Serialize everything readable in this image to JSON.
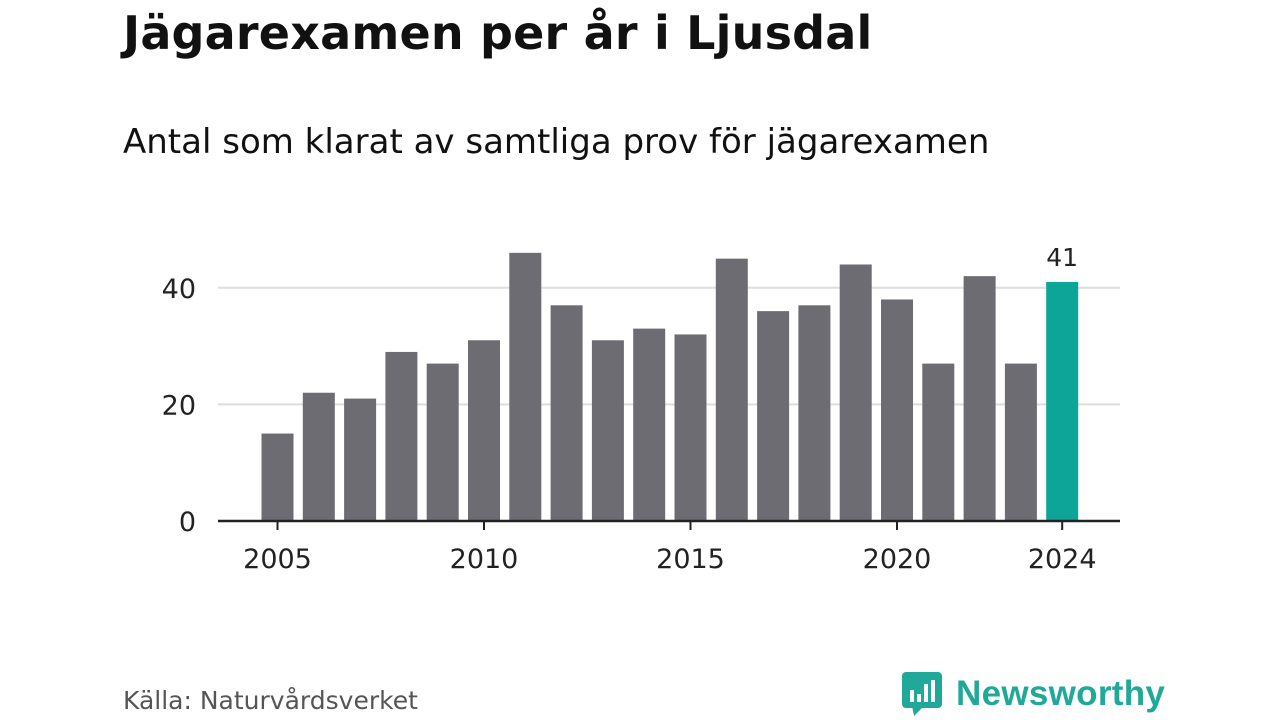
{
  "chart_data": {
    "type": "bar",
    "title": "Jägarexamen per år i Ljusdal",
    "subtitle": "Antal som klarat av samtliga prov för jägarexamen",
    "source": "Källa: Naturvårdsverket",
    "brand": "Newsworthy",
    "categories": [
      "2005",
      "2006",
      "2007",
      "2008",
      "2009",
      "2010",
      "2011",
      "2012",
      "2013",
      "2014",
      "2015",
      "2016",
      "2017",
      "2018",
      "2019",
      "2020",
      "2021",
      "2022",
      "2023",
      "2024"
    ],
    "values": [
      15,
      22,
      21,
      29,
      27,
      31,
      46,
      37,
      31,
      33,
      32,
      45,
      36,
      37,
      44,
      38,
      27,
      42,
      27,
      41
    ],
    "highlight": {
      "category": "2024",
      "label": "41"
    },
    "x_tick_labels": [
      "2005",
      "2010",
      "2015",
      "2020",
      "2024"
    ],
    "y_ticks": [
      0,
      20,
      40
    ],
    "ylim": [
      0,
      47
    ],
    "grid": true,
    "colors": {
      "bar": "#6d6c72",
      "highlight": "#0ca597",
      "grid": "#dedede",
      "axis": "#222222",
      "brand": "#20a898"
    }
  }
}
